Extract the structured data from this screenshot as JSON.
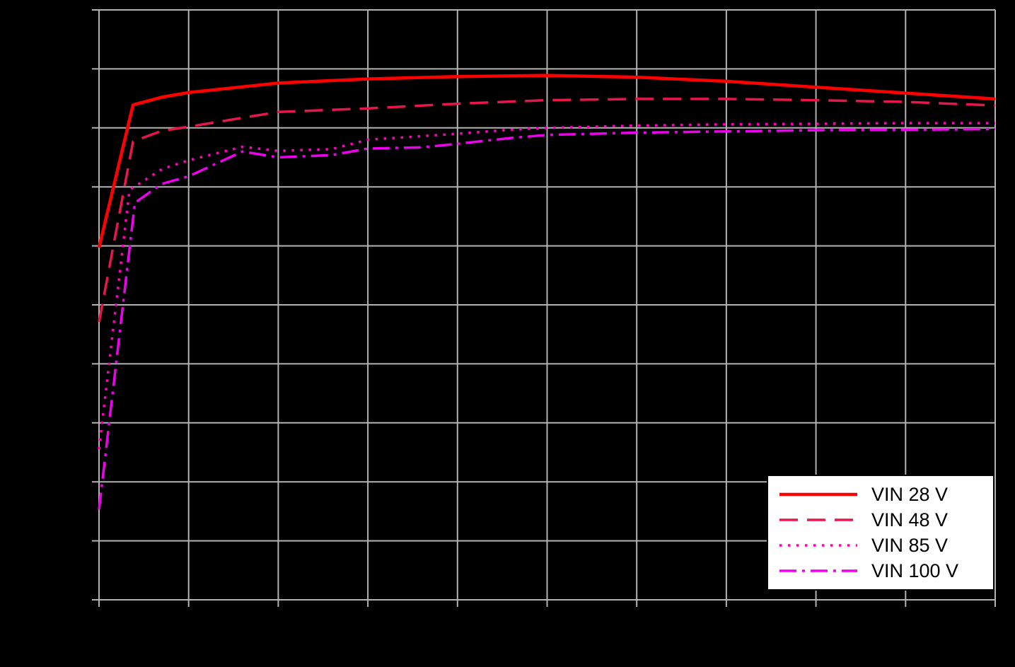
{
  "chart_data": {
    "type": "line",
    "title": "",
    "xlabel": "",
    "ylabel": "",
    "axis_tick_labels_visible": false,
    "x_range_grid_units": [
      0,
      10
    ],
    "y_range_grid_units": [
      0,
      10
    ],
    "grid": {
      "visible": true,
      "x_divisions": 10,
      "y_divisions": 10,
      "color": "#b2b2b2"
    },
    "legend": {
      "position": "lower-right",
      "background": "#ffffff",
      "border_color": "#000000",
      "text_color": "#000000"
    },
    "series": [
      {
        "name": "VIN 28 V",
        "color": "#ff0000",
        "dash": "solid",
        "width": 4.5,
        "points": [
          [
            0,
            5.97
          ],
          [
            0.38,
            8.39
          ],
          [
            0.7,
            8.52
          ],
          [
            1,
            8.6
          ],
          [
            2,
            8.76
          ],
          [
            3,
            8.83
          ],
          [
            4,
            8.87
          ],
          [
            5,
            8.89
          ],
          [
            6,
            8.86
          ],
          [
            7,
            8.79
          ],
          [
            8,
            8.69
          ],
          [
            9,
            8.59
          ],
          [
            10,
            8.49
          ]
        ]
      },
      {
        "name": "VIN 48 V",
        "color": "#e8174b",
        "dash": "dash",
        "width": 3.5,
        "points": [
          [
            0,
            4.71
          ],
          [
            0.38,
            7.77
          ],
          [
            0.7,
            7.95
          ],
          [
            1,
            8.02
          ],
          [
            2,
            8.27
          ],
          [
            3,
            8.33
          ],
          [
            4,
            8.41
          ],
          [
            5,
            8.47
          ],
          [
            6,
            8.49
          ],
          [
            7,
            8.49
          ],
          [
            8,
            8.47
          ],
          [
            9,
            8.44
          ],
          [
            10,
            8.38
          ]
        ]
      },
      {
        "name": "VIN 85 V",
        "color": "#ff00bf",
        "dash": "dot",
        "width": 3.5,
        "points": [
          [
            0,
            2.55
          ],
          [
            0.34,
            6.95
          ],
          [
            0.7,
            7.3
          ],
          [
            1,
            7.45
          ],
          [
            1.6,
            7.68
          ],
          [
            2,
            7.61
          ],
          [
            2.6,
            7.64
          ],
          [
            3,
            7.8
          ],
          [
            3.6,
            7.86
          ],
          [
            4,
            7.9
          ],
          [
            4.6,
            7.97
          ],
          [
            5,
            8.0
          ],
          [
            6,
            8.04
          ],
          [
            7,
            8.06
          ],
          [
            8,
            8.07
          ],
          [
            9,
            8.08
          ],
          [
            10,
            8.08
          ]
        ]
      },
      {
        "name": "VIN 100 V",
        "color": "#ee00ee",
        "dash": "dashdot",
        "width": 3.5,
        "points": [
          [
            0,
            1.53
          ],
          [
            0.4,
            6.73
          ],
          [
            0.7,
            7.05
          ],
          [
            1,
            7.18
          ],
          [
            1.6,
            7.6
          ],
          [
            2,
            7.5
          ],
          [
            2.6,
            7.54
          ],
          [
            3,
            7.65
          ],
          [
            3.6,
            7.67
          ],
          [
            4,
            7.73
          ],
          [
            4.6,
            7.83
          ],
          [
            5,
            7.88
          ],
          [
            6,
            7.92
          ],
          [
            7,
            7.94
          ],
          [
            8,
            7.96
          ],
          [
            9,
            7.97
          ],
          [
            10,
            7.98
          ]
        ]
      }
    ]
  }
}
